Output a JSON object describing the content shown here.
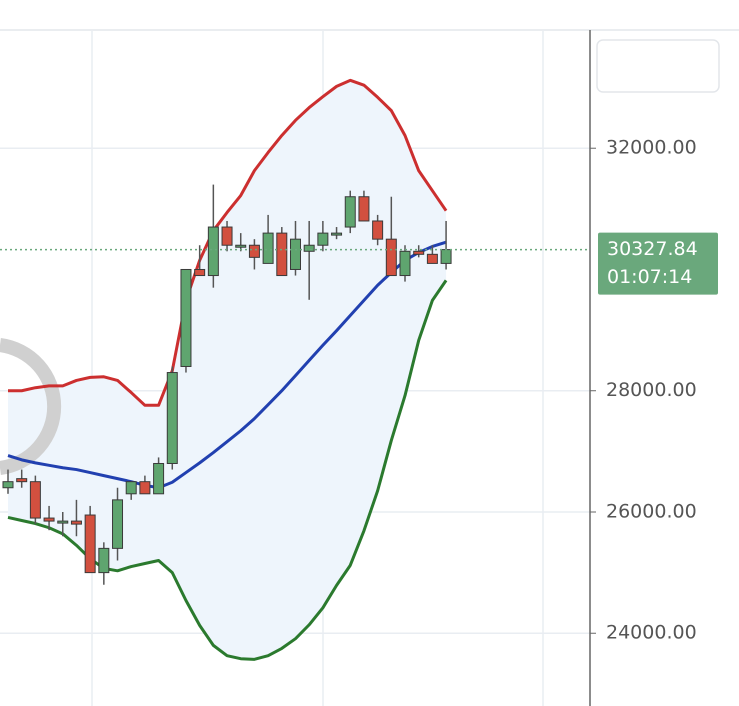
{
  "chart_data": {
    "type": "candlestick",
    "open": [
      26400,
      26550,
      26500,
      25900,
      25850,
      25850,
      25950,
      25000,
      25400,
      26300,
      26500,
      26300,
      26800,
      28400,
      30000,
      29900,
      30700,
      30400,
      30400,
      30100,
      30600,
      30000,
      30300,
      30400,
      30600,
      30700,
      31200,
      30800,
      30500,
      29900,
      30300,
      30250,
      30100
    ],
    "high": [
      26700,
      26700,
      26600,
      26100,
      26000,
      26200,
      26100,
      25500,
      26400,
      26500,
      26600,
      26900,
      28400,
      30000,
      30400,
      31400,
      30800,
      30600,
      30500,
      30900,
      30700,
      30800,
      30800,
      30800,
      30700,
      31300,
      31300,
      30900,
      31200,
      30400,
      30400,
      30400,
      30800
    ],
    "low": [
      26300,
      26400,
      25800,
      25700,
      25600,
      25600,
      25000,
      24800,
      25200,
      26200,
      26300,
      26300,
      26700,
      28300,
      29900,
      29700,
      30300,
      30300,
      30000,
      30100,
      29900,
      29900,
      29500,
      30300,
      30500,
      30600,
      30800,
      30400,
      29900,
      29800,
      30200,
      30100,
      30000
    ],
    "close": [
      26500,
      26500,
      25900,
      25850,
      25850,
      25800,
      25000,
      25400,
      26200,
      26500,
      26300,
      26800,
      28300,
      30000,
      29900,
      30700,
      30400,
      30400,
      30200,
      30600,
      29900,
      30500,
      30400,
      30600,
      30600,
      31200,
      30800,
      30500,
      29900,
      30300,
      30250,
      30100,
      30328
    ],
    "up_color": "#5fa56f",
    "down_color": "#d2503f",
    "series": [
      {
        "color": "#cc2f2f",
        "values": [
          28000,
          28000,
          28050,
          28080,
          28080,
          28170,
          28220,
          28230,
          28170,
          27970,
          27760,
          27760,
          28330,
          29490,
          30150,
          30640,
          30940,
          31220,
          31630,
          31930,
          32210,
          32460,
          32670,
          32850,
          33020,
          33120,
          33040,
          32840,
          32620,
          32210,
          31630,
          31300,
          30970
        ]
      },
      {
        "color": "#2140b0",
        "values": [
          26930,
          26860,
          26810,
          26770,
          26730,
          26700,
          26650,
          26600,
          26550,
          26500,
          26440,
          26400,
          26490,
          26650,
          26810,
          26980,
          27160,
          27340,
          27540,
          27770,
          28000,
          28250,
          28500,
          28750,
          28990,
          29240,
          29490,
          29740,
          29950,
          30150,
          30280,
          30380,
          30450
        ]
      },
      {
        "color": "#2b7a2e",
        "values": [
          25910,
          25860,
          25810,
          25740,
          25640,
          25450,
          25230,
          25070,
          25030,
          25100,
          25150,
          25200,
          25000,
          24540,
          24130,
          23800,
          23630,
          23580,
          23570,
          23630,
          23750,
          23910,
          24140,
          24420,
          24790,
          25120,
          25690,
          26350,
          27180,
          27920,
          28830,
          29490,
          29820
        ]
      }
    ],
    "ylim": [
      22800,
      33950
    ],
    "yticks": [
      {
        "value": 24000,
        "label": "24000.00"
      },
      {
        "value": 26000,
        "label": "26000.00"
      },
      {
        "value": 28000,
        "label": "28000.00"
      },
      {
        "value": 32000,
        "label": "32000.00"
      }
    ],
    "grid": true,
    "last_price": {
      "value": 30327.84,
      "label": "30327.84"
    },
    "countdown": "01:07:14",
    "last_price_color": "#6aa87c"
  }
}
